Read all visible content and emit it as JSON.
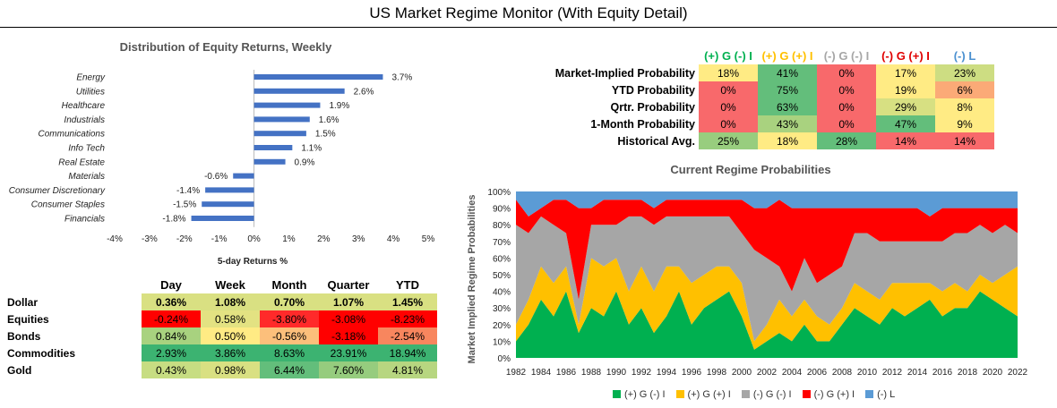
{
  "title": "US Market Regime Monitor (With Equity Detail)",
  "equity_chart": {
    "title": "Distribution of Equity Returns, Weekly",
    "xlabel": "5-day Returns %"
  },
  "regime_table": {
    "headers": [
      {
        "label": "(+) G (-) I",
        "color": "#00B050"
      },
      {
        "label": "(+) G (+) I",
        "color": "#FFC000"
      },
      {
        "label": "(-) G (-) I",
        "color": "#A6A6A6"
      },
      {
        "label": "(-) G (+) I",
        "color": "#E00000"
      },
      {
        "label": "(-) L",
        "color": "#4A90D0"
      }
    ],
    "rows": [
      {
        "label": "Market-Implied Probability",
        "values": [
          "18%",
          "41%",
          "0%",
          "17%",
          "23%"
        ],
        "colors": [
          "#FFEB84",
          "#63BE7B",
          "#F8696B",
          "#FFEB84",
          "#CDDD82"
        ]
      },
      {
        "label": "YTD Probability",
        "values": [
          "0%",
          "75%",
          "0%",
          "19%",
          "6%"
        ],
        "colors": [
          "#F8696B",
          "#63BE7B",
          "#F8696B",
          "#FFEB84",
          "#FBAA77"
        ]
      },
      {
        "label": "Qrtr. Probability",
        "values": [
          "0%",
          "63%",
          "0%",
          "29%",
          "8%"
        ],
        "colors": [
          "#F8696B",
          "#63BE7B",
          "#F8696B",
          "#D7E082",
          "#FFEB84"
        ]
      },
      {
        "label": "1-Month Probability",
        "values": [
          "0%",
          "43%",
          "0%",
          "47%",
          "9%"
        ],
        "colors": [
          "#F8696B",
          "#A9D27F",
          "#F8696B",
          "#63BE7B",
          "#FFEB84"
        ]
      },
      {
        "label": "Historical Avg.",
        "values": [
          "25%",
          "18%",
          "28%",
          "14%",
          "14%"
        ],
        "colors": [
          "#98CD7E",
          "#FFEB84",
          "#63BE7B",
          "#F8696B",
          "#F8696B"
        ]
      }
    ]
  },
  "returns_table": {
    "headers": [
      "Day",
      "Week",
      "Month",
      "Quarter",
      "YTD"
    ],
    "rows": [
      {
        "label": "Dollar",
        "values": [
          "0.36%",
          "1.08%",
          "0.70%",
          "1.07%",
          "1.45%"
        ],
        "colors": [
          "#D9E082",
          "#D9E082",
          "#D9E082",
          "#D9E082",
          "#D9E082"
        ],
        "bold": true
      },
      {
        "label": "Equities",
        "values": [
          "-0.24%",
          "0.58%",
          "-3.80%",
          "-3.08%",
          "-8.23%"
        ],
        "colors": [
          "#FF0000",
          "#E3E282",
          "#FF2A2A",
          "#FF0000",
          "#FF0000"
        ],
        "bold": false
      },
      {
        "label": "Bonds",
        "values": [
          "0.84%",
          "0.50%",
          "-0.56%",
          "-3.18%",
          "-2.54%"
        ],
        "colors": [
          "#A8D27F",
          "#FFEB84",
          "#FCBF7B",
          "#FF0000",
          "#F8865E"
        ],
        "bold": false
      },
      {
        "label": "Commodities",
        "values": [
          "2.93%",
          "3.86%",
          "8.63%",
          "23.91%",
          "18.94%"
        ],
        "colors": [
          "#3CB371",
          "#3CB371",
          "#3CB371",
          "#3CB371",
          "#3CB371"
        ],
        "bold": false
      },
      {
        "label": "Gold",
        "values": [
          "0.43%",
          "0.98%",
          "6.44%",
          "7.60%",
          "4.81%"
        ],
        "colors": [
          "#C7DD82",
          "#D9E082",
          "#63BE7B",
          "#96CC7E",
          "#B7D680"
        ],
        "bold": false
      }
    ]
  },
  "regime_chart": {
    "title": "Current Regime Probabilities",
    "ylabel": "Market Implied Regime Probabilities",
    "legend": [
      {
        "label": "(+) G (-) I",
        "color": "#00B050"
      },
      {
        "label": "(+) G (+) I",
        "color": "#FFC000"
      },
      {
        "label": "(-) G (-) I",
        "color": "#A6A6A6"
      },
      {
        "label": "(-) G (+) I",
        "color": "#FF0000"
      },
      {
        "label": "(-) L",
        "color": "#5B9BD5"
      }
    ]
  },
  "chart_data": [
    {
      "type": "bar",
      "orientation": "horizontal",
      "title": "Distribution of Equity Returns, Weekly",
      "xlabel": "5-day Returns %",
      "ylabel": "",
      "categories": [
        "Energy",
        "Utilities",
        "Healthcare",
        "Industrials",
        "Communications",
        "Info Tech",
        "Real Estate",
        "Materials",
        "Consumer Discretionary",
        "Consumer Staples",
        "Financials"
      ],
      "values": [
        3.7,
        2.6,
        1.9,
        1.6,
        1.5,
        1.1,
        0.9,
        -0.6,
        -1.4,
        -1.5,
        -1.8
      ],
      "data_labels": [
        "3.7%",
        "2.6%",
        "1.9%",
        "1.6%",
        "1.5%",
        "1.1%",
        "0.9%",
        "-0.6%",
        "-1.4%",
        "-1.5%",
        "-1.8%"
      ],
      "xlim": [
        -4,
        5
      ],
      "xticks": [
        "-4%",
        "-3%",
        "-2%",
        "-1%",
        "0%",
        "1%",
        "2%",
        "3%",
        "4%",
        "5%"
      ],
      "color": "#4472C4"
    },
    {
      "type": "area",
      "stacked": "100%",
      "title": "Current Regime Probabilities",
      "ylabel": "Market Implied Regime Probabilities",
      "xlim": [
        1982,
        2022
      ],
      "ylim": [
        0,
        100
      ],
      "xticks": [
        "1982",
        "1984",
        "1986",
        "1988",
        "1990",
        "1992",
        "1994",
        "1996",
        "1998",
        "2000",
        "2002",
        "2004",
        "2006",
        "2008",
        "2010",
        "2012",
        "2014",
        "2016",
        "2018",
        "2020",
        "2022"
      ],
      "yticks": [
        "0%",
        "10%",
        "20%",
        "30%",
        "40%",
        "50%",
        "60%",
        "70%",
        "80%",
        "90%",
        "100%"
      ],
      "x": [
        1982,
        1983,
        1984,
        1985,
        1986,
        1987,
        1988,
        1989,
        1990,
        1991,
        1992,
        1993,
        1994,
        1995,
        1996,
        1997,
        1998,
        1999,
        2000,
        2001,
        2002,
        2003,
        2004,
        2005,
        2006,
        2007,
        2008,
        2009,
        2010,
        2011,
        2012,
        2013,
        2014,
        2015,
        2016,
        2017,
        2018,
        2019,
        2020,
        2021,
        2022
      ],
      "series": [
        {
          "name": "(+) G (-) I",
          "values": [
            10,
            20,
            35,
            25,
            40,
            15,
            30,
            25,
            40,
            20,
            30,
            15,
            25,
            40,
            20,
            30,
            35,
            40,
            25,
            5,
            10,
            15,
            10,
            20,
            10,
            10,
            20,
            30,
            25,
            20,
            30,
            25,
            30,
            35,
            25,
            30,
            30,
            40,
            35,
            30,
            25
          ]
        },
        {
          "name": "(+) G (+) I",
          "values": [
            10,
            15,
            20,
            20,
            15,
            5,
            30,
            30,
            20,
            20,
            25,
            25,
            30,
            15,
            25,
            20,
            20,
            15,
            20,
            5,
            10,
            20,
            15,
            15,
            15,
            10,
            10,
            15,
            15,
            15,
            15,
            20,
            15,
            10,
            15,
            15,
            10,
            10,
            10,
            20,
            30
          ]
        },
        {
          "name": "(-) G (-) I",
          "values": [
            60,
            40,
            30,
            35,
            20,
            15,
            20,
            25,
            20,
            45,
            30,
            40,
            30,
            30,
            40,
            35,
            30,
            30,
            30,
            55,
            40,
            20,
            15,
            25,
            20,
            30,
            25,
            30,
            35,
            35,
            25,
            25,
            25,
            25,
            30,
            30,
            35,
            30,
            30,
            30,
            20
          ]
        },
        {
          "name": "(-) G (+) I",
          "values": [
            15,
            10,
            5,
            15,
            20,
            55,
            10,
            15,
            15,
            10,
            10,
            10,
            10,
            10,
            10,
            10,
            10,
            10,
            20,
            25,
            30,
            40,
            50,
            30,
            45,
            40,
            35,
            15,
            15,
            20,
            20,
            20,
            20,
            15,
            20,
            15,
            15,
            10,
            15,
            10,
            15
          ]
        },
        {
          "name": "(-) L",
          "values": [
            5,
            15,
            10,
            5,
            5,
            10,
            10,
            5,
            5,
            5,
            5,
            10,
            5,
            5,
            5,
            5,
            5,
            5,
            5,
            10,
            10,
            5,
            10,
            10,
            10,
            10,
            10,
            10,
            10,
            10,
            10,
            10,
            10,
            15,
            10,
            10,
            10,
            10,
            10,
            10,
            10
          ]
        }
      ]
    }
  ]
}
